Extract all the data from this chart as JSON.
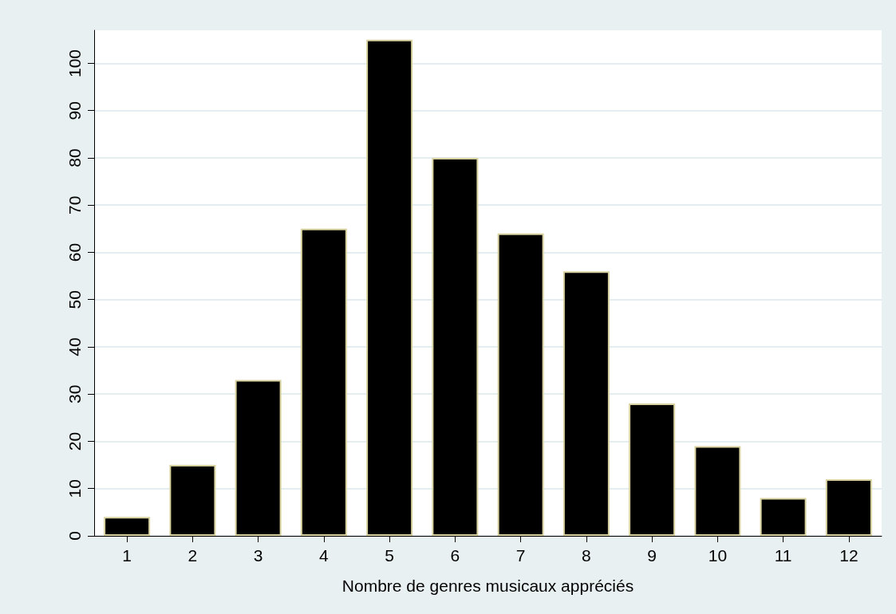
{
  "chart_data": {
    "type": "bar",
    "xlabel": "Nombre de genres musicaux appréciés",
    "x": [
      1,
      2,
      3,
      4,
      5,
      6,
      7,
      8,
      9,
      10,
      11,
      12
    ],
    "values": [
      4,
      15,
      33,
      65,
      105,
      80,
      64,
      56,
      28,
      19,
      8,
      12
    ],
    "color": "#000000",
    "xlim": [
      0.5,
      12.5
    ],
    "xticks": [
      1,
      2,
      3,
      4,
      5,
      6,
      7,
      8,
      9,
      10,
      11,
      12
    ],
    "ylim": [
      0,
      107
    ],
    "yticks": [
      0,
      10,
      20,
      30,
      40,
      50,
      60,
      70,
      80,
      90,
      100
    ],
    "grid": "y"
  }
}
